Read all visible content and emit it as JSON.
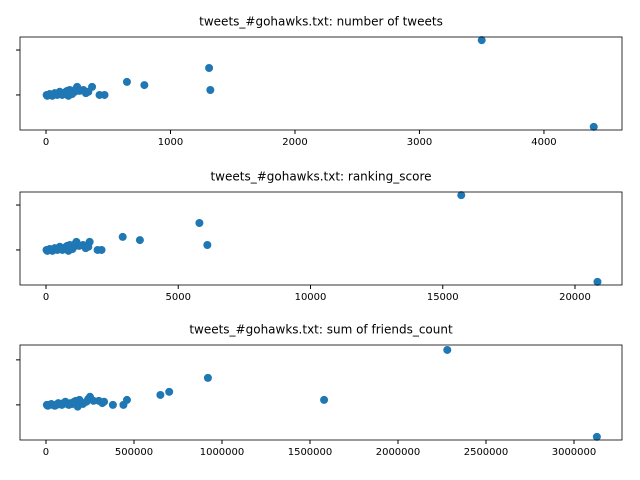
{
  "chart_data": [
    {
      "type": "scatter",
      "title": "tweets_#gohawks.txt: number of tweets",
      "color": "#1f77b4",
      "x": [
        4400,
        3500,
        1310,
        1320,
        650,
        790,
        470,
        430,
        370,
        300,
        250,
        230,
        200,
        180,
        160,
        140,
        120,
        100,
        80,
        60,
        40,
        20,
        5,
        10,
        30,
        50,
        70,
        90,
        110,
        130,
        150,
        170,
        190,
        210,
        240,
        270,
        320,
        340
      ],
      "y": [
        -0.71,
        1.22,
        0.6,
        0.11,
        0.29,
        0.22,
        0,
        0,
        0.18,
        0.11,
        0.18,
        0.07,
        0.04,
        -0.02,
        0.07,
        0.04,
        0.02,
        0.04,
        0.02,
        0,
        0,
        0,
        0,
        -0.02,
        0.02,
        -0.02,
        0.04,
        0,
        0.07,
        0,
        0.02,
        0.09,
        0.11,
        0.02,
        0.13,
        0.09,
        0.04,
        0.07
      ],
      "xlim": [
        -209,
        4627
      ],
      "ylim": [
        -0.78,
        1.29
      ],
      "xticks": [
        0,
        1000,
        2000,
        3000,
        4000
      ],
      "yticks": [
        0,
        1
      ]
    },
    {
      "type": "scatter",
      "title": "tweets_#gohawks.txt: ranking_score",
      "color": "#1f77b4",
      "x": [
        20850,
        15700,
        5800,
        6100,
        2900,
        3550,
        2100,
        1950,
        1650,
        1400,
        1150,
        1050,
        950,
        850,
        760,
        660,
        570,
        480,
        380,
        290,
        190,
        95,
        20,
        50,
        140,
        240,
        330,
        430,
        520,
        620,
        710,
        800,
        900,
        1000,
        1100,
        1250,
        1500,
        1600
      ],
      "y": [
        -0.71,
        1.22,
        0.6,
        0.11,
        0.29,
        0.22,
        0,
        0,
        0.18,
        0.11,
        0.18,
        0.07,
        0.04,
        -0.02,
        0.07,
        0.04,
        0.02,
        0.04,
        0.02,
        0,
        0,
        0,
        0,
        -0.02,
        0.02,
        -0.02,
        0.04,
        0,
        0.07,
        0,
        0.02,
        0.09,
        0.11,
        0.02,
        0.13,
        0.09,
        0.04,
        0.07
      ],
      "xlim": [
        -983,
        21777
      ],
      "ylim": [
        -0.78,
        1.29
      ],
      "xticks": [
        0,
        5000,
        10000,
        15000,
        20000
      ],
      "yticks": [
        0,
        1
      ]
    },
    {
      "type": "scatter",
      "title": "tweets_#gohawks.txt: sum of friends_count",
      "color": "#1f77b4",
      "x": [
        3130000,
        2280000,
        920000,
        1580000,
        650000,
        700000,
        460000,
        440000,
        380000,
        300000,
        250000,
        230000,
        200000,
        180000,
        160000,
        140000,
        120000,
        100000,
        80000,
        60000,
        40000,
        20000,
        5000,
        10000,
        30000,
        50000,
        70000,
        90000,
        110000,
        130000,
        150000,
        170000,
        190000,
        210000,
        240000,
        270000,
        320000,
        330000
      ],
      "y": [
        -0.71,
        1.22,
        0.6,
        0.11,
        0.22,
        0.29,
        0.11,
        0,
        0,
        0.09,
        0.18,
        0.07,
        0.04,
        -0.04,
        0.07,
        0.04,
        0.02,
        0.04,
        0.02,
        0,
        0,
        0,
        0,
        -0.02,
        0.02,
        -0.02,
        0.04,
        0,
        0.07,
        0,
        0.02,
        0.09,
        0.11,
        0.02,
        0.13,
        0.09,
        0.04,
        0.07
      ],
      "xlim": [
        -147700,
        3272700
      ],
      "ylim": [
        -0.78,
        1.33
      ],
      "xticks": [
        0,
        500000,
        1000000,
        1500000,
        2000000,
        2500000,
        3000000
      ],
      "yticks": [
        0,
        1
      ]
    }
  ]
}
